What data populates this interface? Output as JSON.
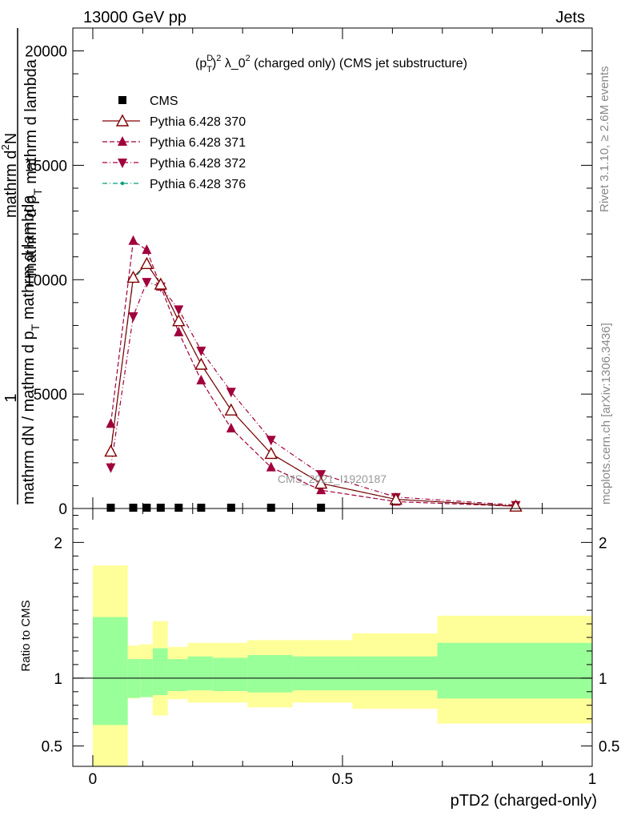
{
  "header": {
    "left": "13000 GeV pp",
    "right": "Jets"
  },
  "side_labels": {
    "rivet": "Rivet 3.1.10, ≥ 2.6M events",
    "source": "mcplots.cern.ch [arXiv:1306.3436]"
  },
  "chart_data": [
    {
      "type": "line",
      "title_parts": {
        "base": "(p",
        "sup": "D",
        "sub": "T",
        "tail1": ")",
        "sup2": "2",
        "tail2": " λ_0",
        "sup3": "2",
        "tail3": " (charged only) (CMS jet substructure)"
      },
      "ylabel": {
        "numerator": "1",
        "denominator": "mathrm dN / mathrm d p",
        "denominator_sub": "T",
        "denominator_tail": " mathrm d lambda",
        "side_numerator": "mathrm d",
        "side_numerator_sup": "2",
        "side_numerator_tail": "N",
        "side_denominator": "mathrm d p",
        "side_denominator_sub": "T",
        "side_denominator_tail": " mathrm d lambda"
      },
      "xlim": [
        -0.04,
        1.0
      ],
      "ylim": [
        0,
        21000
      ],
      "yticks": [
        0,
        5000,
        10000,
        15000,
        20000
      ],
      "ytick_labels": [
        "0",
        "5000",
        "10000",
        "15000",
        "20000"
      ],
      "watermark": "CMS_2021_I1920187",
      "legend": {
        "placement": "top-left",
        "entries": [
          {
            "label": "CMS",
            "color": "#000000",
            "marker": "square",
            "dash": "none"
          },
          {
            "label": "Pythia 6.428 370",
            "color": "#800000",
            "marker": "triangle-up-open",
            "dash": "solid"
          },
          {
            "label": "Pythia 6.428 371",
            "color": "#a0003c",
            "marker": "triangle-up",
            "dash": "dashed"
          },
          {
            "label": "Pythia 6.428 372",
            "color": "#a0003c",
            "marker": "triangle-down",
            "dash": "dashdot"
          },
          {
            "label": "Pythia 6.428 376",
            "color": "#00a080",
            "marker": "dot",
            "dash": "dashdot"
          }
        ]
      },
      "series": [
        {
          "name": "CMS",
          "x": [
            0.036,
            0.081,
            0.108,
            0.136,
            0.172,
            0.217,
            0.277,
            0.357,
            0.457
          ],
          "y": [
            0,
            0,
            0,
            0,
            0,
            0,
            0,
            0,
            0
          ]
        },
        {
          "name": "Pythia 6.428 370",
          "x": [
            0.036,
            0.081,
            0.108,
            0.136,
            0.172,
            0.217,
            0.277,
            0.357,
            0.457,
            0.607,
            0.847
          ],
          "y": [
            2500,
            10100,
            10700,
            9800,
            8200,
            6300,
            4300,
            2400,
            1100,
            400,
            100
          ]
        },
        {
          "name": "Pythia 6.428 371",
          "x": [
            0.036,
            0.081,
            0.108,
            0.136,
            0.172,
            0.217,
            0.277,
            0.357,
            0.457,
            0.607,
            0.847
          ],
          "y": [
            3700,
            11700,
            11300,
            9700,
            7700,
            5600,
            3500,
            1800,
            800,
            300,
            100
          ]
        },
        {
          "name": "Pythia 6.428 372",
          "x": [
            0.036,
            0.081,
            0.108,
            0.136,
            0.172,
            0.217,
            0.277,
            0.357,
            0.457,
            0.607,
            0.847
          ],
          "y": [
            1800,
            8400,
            9900,
            9700,
            8700,
            6900,
            5100,
            3000,
            1500,
            500,
            150
          ]
        },
        {
          "name": "Pythia 6.428 376",
          "x": [
            0.036,
            0.081,
            0.108,
            0.136,
            0.172,
            0.217,
            0.277,
            0.357,
            0.457,
            0.607,
            0.847
          ],
          "y": [
            2600,
            10000,
            10700,
            9800,
            8200,
            6300,
            4300,
            2400,
            1100,
            400,
            100
          ]
        }
      ]
    },
    {
      "type": "area",
      "ylabel": "Ratio to CMS",
      "xlabel": "pTD2 (charged-only)",
      "xlim": [
        -0.04,
        1.0
      ],
      "ylim": [
        0.35,
        2.25
      ],
      "yticks": [
        0.5,
        1,
        2
      ],
      "ytick_labels": [
        "0.5",
        "1",
        "2"
      ],
      "xticks": [
        0,
        0.5,
        1
      ],
      "xtick_labels": [
        "0",
        "0.5",
        "1"
      ],
      "bins": [
        {
          "lo": 0.0,
          "hi": 0.07,
          "green": [
            0.655,
            1.45
          ],
          "yellow": [
            0.35,
            1.83
          ]
        },
        {
          "lo": 0.07,
          "hi": 0.095,
          "green": [
            0.855,
            1.14
          ],
          "yellow": [
            0.85,
            1.24
          ]
        },
        {
          "lo": 0.095,
          "hi": 0.12,
          "green": [
            0.86,
            1.14
          ],
          "yellow": [
            0.86,
            1.25
          ]
        },
        {
          "lo": 0.12,
          "hi": 0.15,
          "green": [
            0.875,
            1.22
          ],
          "yellow": [
            0.725,
            1.42
          ]
        },
        {
          "lo": 0.15,
          "hi": 0.19,
          "green": [
            0.905,
            1.14
          ],
          "yellow": [
            0.845,
            1.23
          ]
        },
        {
          "lo": 0.19,
          "hi": 0.24,
          "green": [
            0.91,
            1.16
          ],
          "yellow": [
            0.82,
            1.26
          ]
        },
        {
          "lo": 0.24,
          "hi": 0.31,
          "green": [
            0.905,
            1.15
          ],
          "yellow": [
            0.82,
            1.26
          ]
        },
        {
          "lo": 0.31,
          "hi": 0.4,
          "green": [
            0.895,
            1.17
          ],
          "yellow": [
            0.785,
            1.28
          ]
        },
        {
          "lo": 0.4,
          "hi": 0.52,
          "green": [
            0.91,
            1.16
          ],
          "yellow": [
            0.82,
            1.28
          ]
        },
        {
          "lo": 0.52,
          "hi": 0.69,
          "green": [
            0.91,
            1.16
          ],
          "yellow": [
            0.775,
            1.33
          ]
        },
        {
          "lo": 0.69,
          "hi": 1.0,
          "green": [
            0.85,
            1.26
          ],
          "yellow": [
            0.665,
            1.46
          ]
        }
      ],
      "reference_line": 1.0
    }
  ],
  "colors": {
    "green_band": "#99ff99",
    "yellow_band": "#ffff99",
    "axis": "#000000",
    "label_grey": "#888888"
  }
}
